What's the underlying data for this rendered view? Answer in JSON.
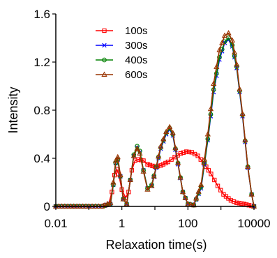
{
  "chart_data": {
    "type": "line",
    "xlabel": "Relaxation time(s)",
    "ylabel": "Intensity",
    "x_scale": "log",
    "xlim": [
      0.01,
      10000
    ],
    "ylim": [
      0,
      1.6
    ],
    "x_ticks": [
      0.01,
      1,
      100,
      10000
    ],
    "x_tick_labels": [
      "0.01",
      "1",
      "100",
      "10000"
    ],
    "y_ticks": [
      0,
      0.4,
      0.8,
      1.2,
      1.6
    ],
    "y_tick_labels": [
      "0",
      "0.4",
      "0.8",
      "1.2",
      "1.6"
    ],
    "grid": false,
    "legend_position": "top-left",
    "series": [
      {
        "name": "100s",
        "color": "#ff0000",
        "marker": "square",
        "points": [
          [
            0.01,
            0
          ],
          [
            0.03,
            0
          ],
          [
            0.1,
            0
          ],
          [
            0.25,
            0
          ],
          [
            0.4,
            0.02
          ],
          [
            0.5,
            0.12
          ],
          [
            0.6,
            0.26
          ],
          [
            0.7,
            0.31
          ],
          [
            0.8,
            0.27
          ],
          [
            1.0,
            0.14
          ],
          [
            1.3,
            0.07
          ],
          [
            1.6,
            0.12
          ],
          [
            2.0,
            0.3
          ],
          [
            2.5,
            0.38
          ],
          [
            3.2,
            0.39
          ],
          [
            4.5,
            0.38
          ],
          [
            6,
            0.35
          ],
          [
            10,
            0.33
          ],
          [
            15,
            0.34
          ],
          [
            25,
            0.37
          ],
          [
            40,
            0.41
          ],
          [
            60,
            0.44
          ],
          [
            90,
            0.455
          ],
          [
            130,
            0.45
          ],
          [
            200,
            0.42
          ],
          [
            300,
            0.36
          ],
          [
            500,
            0.27
          ],
          [
            800,
            0.17
          ],
          [
            1200,
            0.1
          ],
          [
            2000,
            0.05
          ],
          [
            3000,
            0.03
          ],
          [
            5000,
            0.02
          ],
          [
            7000,
            0.01
          ],
          [
            10000,
            0
          ]
        ]
      },
      {
        "name": "300s",
        "color": "#0000ff",
        "marker": "x",
        "points": [
          [
            0.01,
            0
          ],
          [
            0.1,
            0
          ],
          [
            0.25,
            0
          ],
          [
            0.45,
            0.02
          ],
          [
            0.55,
            0.18
          ],
          [
            0.65,
            0.36
          ],
          [
            0.75,
            0.39
          ],
          [
            0.9,
            0.25
          ],
          [
            1.1,
            0.06
          ],
          [
            1.4,
            0.02
          ],
          [
            1.8,
            0.22
          ],
          [
            2.3,
            0.42
          ],
          [
            2.9,
            0.49
          ],
          [
            3.5,
            0.45
          ],
          [
            4.5,
            0.3
          ],
          [
            6,
            0.15
          ],
          [
            8,
            0.17
          ],
          [
            11,
            0.32
          ],
          [
            15,
            0.48
          ],
          [
            22,
            0.6
          ],
          [
            28,
            0.64
          ],
          [
            35,
            0.59
          ],
          [
            50,
            0.35
          ],
          [
            70,
            0.12
          ],
          [
            100,
            0.02
          ],
          [
            150,
            0.01
          ],
          [
            250,
            0.15
          ],
          [
            400,
            0.55
          ],
          [
            600,
            0.95
          ],
          [
            900,
            1.22
          ],
          [
            1300,
            1.36
          ],
          [
            1700,
            1.385
          ],
          [
            2200,
            1.33
          ],
          [
            3000,
            1.15
          ],
          [
            4500,
            0.75
          ],
          [
            6500,
            0.32
          ],
          [
            8500,
            0.1
          ],
          [
            10000,
            0
          ]
        ]
      },
      {
        "name": "400s",
        "color": "#008000",
        "marker": "circle",
        "points": [
          [
            0.01,
            0
          ],
          [
            0.1,
            0
          ],
          [
            0.25,
            0
          ],
          [
            0.45,
            0.02
          ],
          [
            0.55,
            0.18
          ],
          [
            0.65,
            0.36
          ],
          [
            0.75,
            0.39
          ],
          [
            0.9,
            0.25
          ],
          [
            1.1,
            0.06
          ],
          [
            1.4,
            0.02
          ],
          [
            1.8,
            0.22
          ],
          [
            2.3,
            0.43
          ],
          [
            2.9,
            0.5
          ],
          [
            3.5,
            0.46
          ],
          [
            4.5,
            0.3
          ],
          [
            6,
            0.15
          ],
          [
            8,
            0.18
          ],
          [
            11,
            0.33
          ],
          [
            15,
            0.49
          ],
          [
            22,
            0.61
          ],
          [
            28,
            0.65
          ],
          [
            35,
            0.6
          ],
          [
            50,
            0.36
          ],
          [
            70,
            0.12
          ],
          [
            100,
            0.02
          ],
          [
            150,
            0.01
          ],
          [
            250,
            0.16
          ],
          [
            400,
            0.56
          ],
          [
            600,
            0.97
          ],
          [
            900,
            1.24
          ],
          [
            1300,
            1.37
          ],
          [
            1700,
            1.4
          ],
          [
            2200,
            1.34
          ],
          [
            3000,
            1.16
          ],
          [
            4500,
            0.76
          ],
          [
            6500,
            0.33
          ],
          [
            8500,
            0.1
          ],
          [
            10000,
            0
          ]
        ]
      },
      {
        "name": "600s",
        "color": "#993300",
        "marker": "triangle",
        "points": [
          [
            0.01,
            0
          ],
          [
            0.1,
            0
          ],
          [
            0.25,
            0
          ],
          [
            0.45,
            0.03
          ],
          [
            0.55,
            0.2
          ],
          [
            0.65,
            0.38
          ],
          [
            0.75,
            0.41
          ],
          [
            0.9,
            0.26
          ],
          [
            1.1,
            0.06
          ],
          [
            1.4,
            0.02
          ],
          [
            1.8,
            0.22
          ],
          [
            2.3,
            0.42
          ],
          [
            2.9,
            0.48
          ],
          [
            3.5,
            0.44
          ],
          [
            4.5,
            0.29
          ],
          [
            6,
            0.14
          ],
          [
            8,
            0.17
          ],
          [
            11,
            0.33
          ],
          [
            15,
            0.5
          ],
          [
            22,
            0.62
          ],
          [
            28,
            0.66
          ],
          [
            35,
            0.61
          ],
          [
            50,
            0.36
          ],
          [
            70,
            0.12
          ],
          [
            100,
            0.02
          ],
          [
            150,
            0.01
          ],
          [
            250,
            0.18
          ],
          [
            400,
            0.6
          ],
          [
            600,
            1.02
          ],
          [
            900,
            1.3
          ],
          [
            1300,
            1.42
          ],
          [
            1700,
            1.44
          ],
          [
            2200,
            1.38
          ],
          [
            3000,
            1.18
          ],
          [
            4500,
            0.77
          ],
          [
            6500,
            0.33
          ],
          [
            8500,
            0.1
          ],
          [
            10000,
            0
          ]
        ]
      }
    ]
  }
}
